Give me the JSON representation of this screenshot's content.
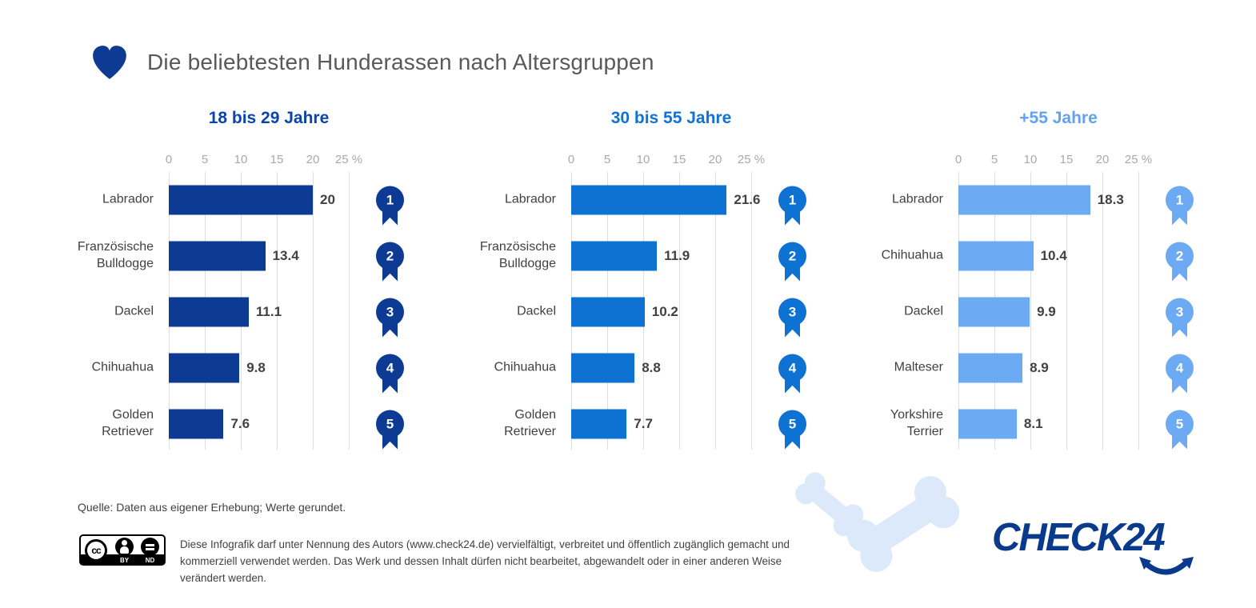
{
  "header": {
    "title": "Die beliebtesten Hunderassen nach Altersgruppen"
  },
  "colors": {
    "heart": "#0d3a93",
    "logo": "#0a3a8c",
    "bone": "#dce9fa",
    "text_dark": "#414042",
    "axis_gray": "#a7a9ac"
  },
  "chart_data": [
    {
      "type": "bar",
      "title": "18 bis 29 Jahre",
      "title_color": "#0b44ad",
      "bar_color": "#0d3a93",
      "categories": [
        "Labrador",
        "Französische Bulldogge",
        "Dackel",
        "Chihuahua",
        "Golden Retriever"
      ],
      "values": [
        20,
        13.4,
        11.1,
        9.8,
        7.6
      ],
      "ranks": [
        1,
        2,
        3,
        4,
        5
      ],
      "unit": "%",
      "xlim": [
        0,
        25
      ],
      "xticks": [
        "0",
        "5",
        "10",
        "15",
        "20",
        "25 %"
      ],
      "grid": true,
      "legend": false
    },
    {
      "type": "bar",
      "title": "30 bis 55 Jahre",
      "title_color": "#0e72d6",
      "bar_color": "#0d72d1",
      "categories": [
        "Labrador",
        "Französische Bulldogge",
        "Dackel",
        "Chihuahua",
        "Golden Retriever"
      ],
      "values": [
        21.6,
        11.9,
        10.2,
        8.8,
        7.7
      ],
      "ranks": [
        1,
        2,
        3,
        4,
        5
      ],
      "unit": "%",
      "xlim": [
        0,
        25
      ],
      "xticks": [
        "0",
        "5",
        "10",
        "15",
        "20",
        "25 %"
      ],
      "grid": true,
      "legend": false
    },
    {
      "type": "bar",
      "title": "+55 Jahre",
      "title_color": "#61a3f1",
      "bar_color": "#6caaf3",
      "categories": [
        "Labrador",
        "Chihuahua",
        "Dackel",
        "Malteser",
        "Yorkshire Terrier"
      ],
      "values": [
        18.3,
        10.4,
        9.9,
        8.9,
        8.1
      ],
      "ranks": [
        1,
        2,
        3,
        4,
        5
      ],
      "unit": "%",
      "xlim": [
        0,
        25
      ],
      "xticks": [
        "0",
        "5",
        "10",
        "15",
        "20",
        "25 %"
      ],
      "grid": true,
      "legend": false
    }
  ],
  "footer": {
    "source": "Quelle: Daten aus eigener Erhebung; Werte gerundet.",
    "license": "Diese Infografik darf unter Nennung des Autors (www.check24.de) vervielfältigt, verbreitet und öffentlich zugänglich gemacht und kommerziell verwendet werden. Das Werk und dessen Inhalt dürfen nicht bearbeitet, abgewandelt oder in einer anderen Weise verändert werden.",
    "cc": {
      "cc": "cc",
      "by": "BY",
      "nd": "ND"
    }
  },
  "logo": {
    "text": "CHECK24"
  }
}
